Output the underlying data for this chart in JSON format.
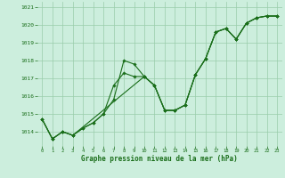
{
  "title": "Graphe pression niveau de la mer (hPa)",
  "bg_color": "#cceedd",
  "grid_color": "#99ccaa",
  "line_color": "#1a6e1a",
  "ylim": [
    1013.2,
    1021.3
  ],
  "xlim": [
    -0.5,
    23.5
  ],
  "yticks": [
    1014,
    1015,
    1016,
    1017,
    1018,
    1019,
    1020,
    1021
  ],
  "xticks": [
    0,
    1,
    2,
    3,
    4,
    5,
    6,
    7,
    8,
    9,
    10,
    11,
    12,
    13,
    14,
    15,
    16,
    17,
    18,
    19,
    20,
    21,
    22,
    23
  ],
  "series1_x": [
    0,
    1,
    2,
    3,
    4,
    5,
    6,
    7,
    8,
    9,
    10,
    11,
    12,
    13,
    14,
    15,
    16,
    17,
    18,
    19,
    20,
    21,
    22,
    23
  ],
  "series1_y": [
    1014.7,
    1013.6,
    1014.0,
    1013.8,
    1014.2,
    1014.5,
    1015.0,
    1015.8,
    1018.0,
    1017.8,
    1017.1,
    1016.6,
    1015.2,
    1015.2,
    1015.5,
    1017.2,
    1018.1,
    1019.6,
    1019.8,
    1019.2,
    1020.1,
    1020.4,
    1020.5,
    1020.5
  ],
  "series2_x": [
    0,
    1,
    2,
    3,
    4,
    5,
    6,
    7,
    8,
    9,
    10,
    11,
    12,
    13,
    14,
    15,
    16,
    17,
    18,
    19,
    20,
    21,
    22,
    23
  ],
  "series2_y": [
    1014.7,
    1013.6,
    1014.0,
    1013.8,
    1014.2,
    1014.5,
    1015.0,
    1016.6,
    1017.3,
    1017.1,
    1017.1,
    1016.6,
    1015.2,
    1015.2,
    1015.5,
    1017.2,
    1018.1,
    1019.6,
    1019.8,
    1019.2,
    1020.1,
    1020.4,
    1020.5,
    1020.5
  ],
  "series3_x": [
    0,
    1,
    2,
    3,
    10,
    11,
    12,
    13,
    14,
    15,
    16,
    17,
    18,
    19,
    20,
    21,
    22,
    23
  ],
  "series3_y": [
    1014.7,
    1013.6,
    1014.0,
    1013.8,
    1017.1,
    1016.6,
    1015.2,
    1015.2,
    1015.5,
    1017.2,
    1018.1,
    1019.6,
    1019.8,
    1019.2,
    1020.1,
    1020.4,
    1020.5,
    1020.5
  ]
}
